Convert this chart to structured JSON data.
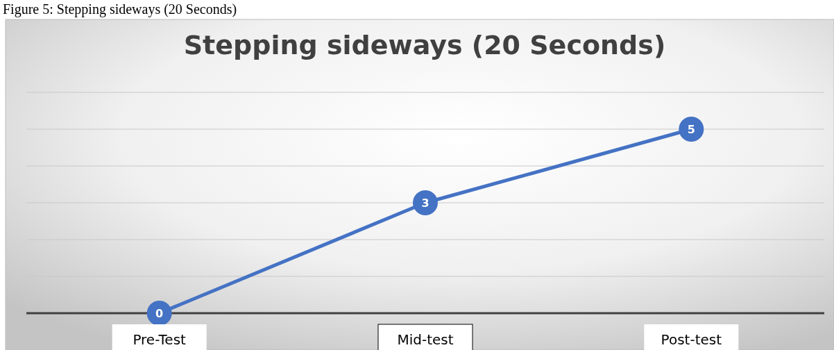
{
  "chart_data": {
    "type": "line",
    "title": "Stepping sideways (20 Seconds)",
    "annotations": [
      "Figure 5: Stepping sideways (20 Seconds)"
    ],
    "categories": [
      "Pre-Test",
      "Mid-test",
      "Post-test"
    ],
    "series": [
      {
        "color": "#4472c4",
        "values": [
          0,
          3,
          5
        ]
      }
    ],
    "ylim": [
      0,
      6
    ],
    "yticks": [
      {
        "value": 0,
        "label": null
      },
      {
        "value": 1,
        "label": null
      },
      {
        "value": 2,
        "label": null
      },
      {
        "value": 3,
        "label": null
      },
      {
        "value": 4,
        "label": null
      },
      {
        "value": 5,
        "label": null
      },
      {
        "value": 6,
        "label": null
      }
    ],
    "grid": "y",
    "tick_labels": "x",
    "data_labels": true,
    "marker": "circle"
  }
}
